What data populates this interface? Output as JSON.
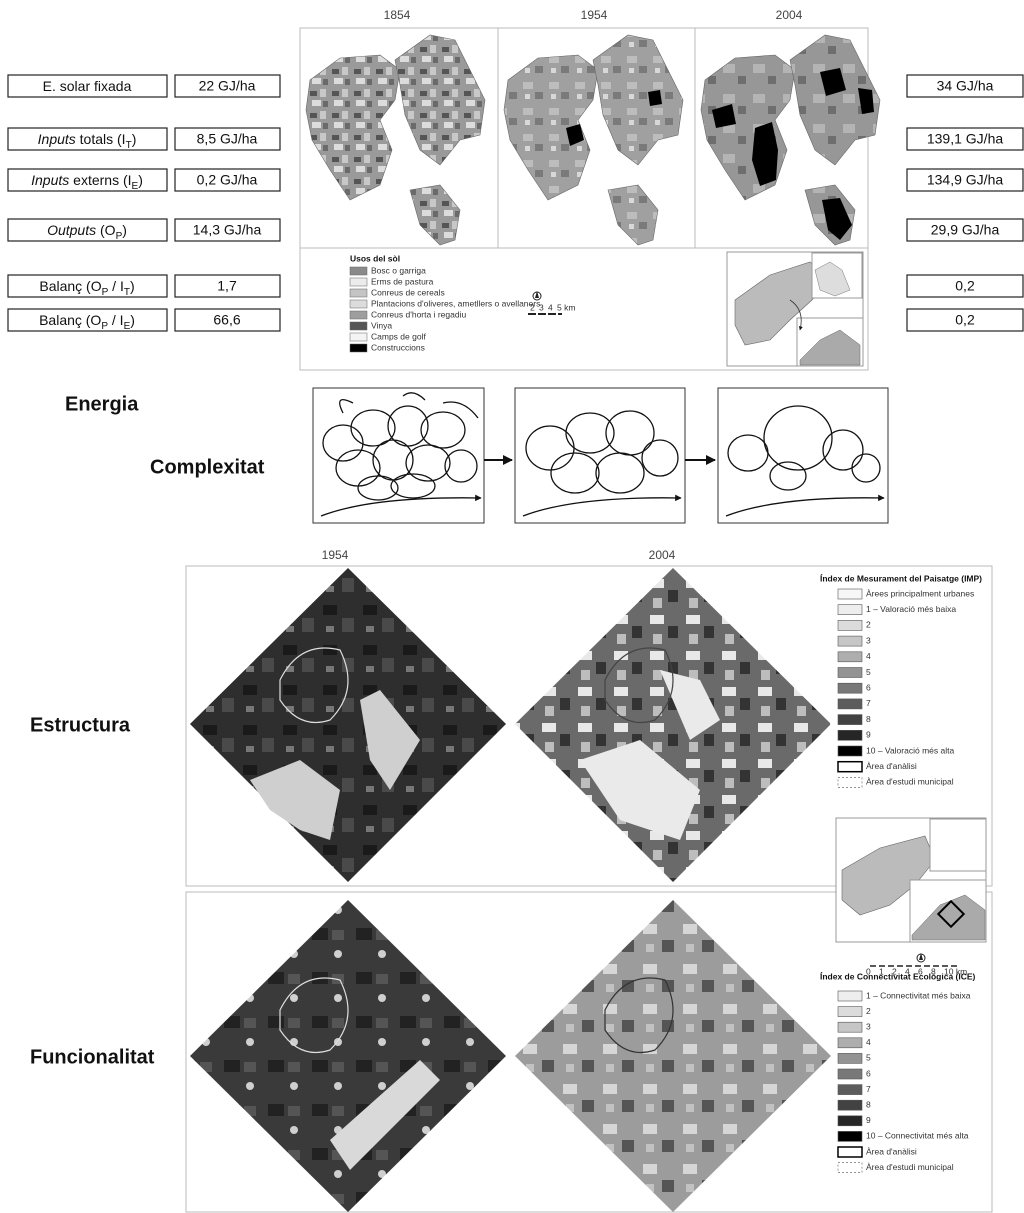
{
  "top_years": [
    "1854",
    "1954",
    "2004"
  ],
  "energy_table": {
    "rows": [
      {
        "label": [
          {
            "text": "E. solar fixada"
          }
        ],
        "value_1854": "22 GJ/ha",
        "value_2004": "34 GJ/ha"
      },
      {
        "label": [
          {
            "text": "Inputs",
            "style": "italic"
          },
          {
            "text": " totals (I"
          },
          {
            "text": "T",
            "style": "sub"
          },
          {
            "text": ")"
          }
        ],
        "value_1854": "8,5 GJ/ha",
        "value_2004": "139,1 GJ/ha"
      },
      {
        "label": [
          {
            "text": "Inputs",
            "style": "italic"
          },
          {
            "text": " externs (I"
          },
          {
            "text": "E",
            "style": "sub"
          },
          {
            "text": ")"
          }
        ],
        "value_1854": "0,2 GJ/ha",
        "value_2004": "134,9 GJ/ha"
      },
      {
        "label": [
          {
            "text": "Outputs",
            "style": "italic"
          },
          {
            "text": " (O"
          },
          {
            "text": "P",
            "style": "sub"
          },
          {
            "text": ")"
          }
        ],
        "value_1854": "14,3 GJ/ha",
        "value_2004": "29,9 GJ/ha"
      },
      {
        "label": [
          {
            "text": "Balanç (O"
          },
          {
            "text": "P",
            "style": "sub"
          },
          {
            "text": " / I"
          },
          {
            "text": "T",
            "style": "sub"
          },
          {
            "text": ")"
          }
        ],
        "value_1854": "1,7",
        "value_2004": "0,2"
      },
      {
        "label": [
          {
            "text": "Balanç (O"
          },
          {
            "text": "P",
            "style": "sub"
          },
          {
            "text": " / I"
          },
          {
            "text": "E",
            "style": "sub"
          },
          {
            "text": ")"
          }
        ],
        "value_1854": "66,6",
        "value_2004": "0,2"
      }
    ]
  },
  "land_use_legend": {
    "title": "Usos del sòl",
    "items": [
      {
        "label": "Bosc o garriga",
        "color": "#8a8a8a"
      },
      {
        "label": "Erms de pastura",
        "color": "#ececec"
      },
      {
        "label": "Conreus de cereals",
        "color": "#c4c4c4"
      },
      {
        "label": "Plantacions d'oliveres, ametllers o avellaners",
        "color": "#dcdcdc"
      },
      {
        "label": "Conreus d'horta i regadiu",
        "color": "#9e9e9e"
      },
      {
        "label": "Vinya",
        "color": "#555555"
      },
      {
        "label": "Camps de golf",
        "color": "#f4f4f4"
      },
      {
        "label": "Construccions",
        "color": "#000000"
      }
    ],
    "scale": [
      "2",
      "3",
      "4",
      "5 km"
    ]
  },
  "row_labels": {
    "energy": "Energia",
    "complexity": "Complexitat",
    "structure": "Estructura",
    "functionality": "Funcionalitat"
  },
  "bottom_years": [
    "1954",
    "2004"
  ],
  "imp_legend": {
    "title": "Índex de Mesurament del Paisatge (IMP)",
    "items": [
      {
        "label": "Àrees principalment urbanes",
        "color": "#f7f7f7"
      },
      {
        "label": "1 – Valoració més baixa",
        "color": "#eeeeee"
      },
      {
        "label": "2",
        "color": "#dcdcdc"
      },
      {
        "label": "3",
        "color": "#c6c6c6"
      },
      {
        "label": "4",
        "color": "#aeaeae"
      },
      {
        "label": "5",
        "color": "#939393"
      },
      {
        "label": "6",
        "color": "#787878"
      },
      {
        "label": "7",
        "color": "#5c5c5c"
      },
      {
        "label": "8",
        "color": "#424242"
      },
      {
        "label": "9",
        "color": "#262626"
      },
      {
        "label": "10 – Valoració més alta",
        "color": "#000000"
      },
      {
        "label": "Àrea d'anàlisi",
        "color": "#ffffff"
      },
      {
        "label": "Àrea d'estudi municipal",
        "color": "#ffffff"
      }
    ]
  },
  "inset_scale": [
    "0",
    "1",
    "2",
    "4",
    "6",
    "8",
    "10 km"
  ],
  "ice_legend": {
    "title": "Índex de Connectivitat Ecològica (ICE)",
    "items": [
      {
        "label": "1 – Connectivitat més baixa",
        "color": "#eeeeee"
      },
      {
        "label": "2",
        "color": "#dcdcdc"
      },
      {
        "label": "3",
        "color": "#c6c6c6"
      },
      {
        "label": "4",
        "color": "#aeaeae"
      },
      {
        "label": "5",
        "color": "#939393"
      },
      {
        "label": "6",
        "color": "#787878"
      },
      {
        "label": "7",
        "color": "#5c5c5c"
      },
      {
        "label": "8",
        "color": "#424242"
      },
      {
        "label": "9",
        "color": "#262626"
      },
      {
        "label": "10 – Connectivitat més alta",
        "color": "#000000"
      },
      {
        "label": "Àrea d'anàlisi",
        "color": "#ffffff"
      },
      {
        "label": "Àrea d'estudi municipal",
        "color": "#ffffff"
      }
    ]
  }
}
